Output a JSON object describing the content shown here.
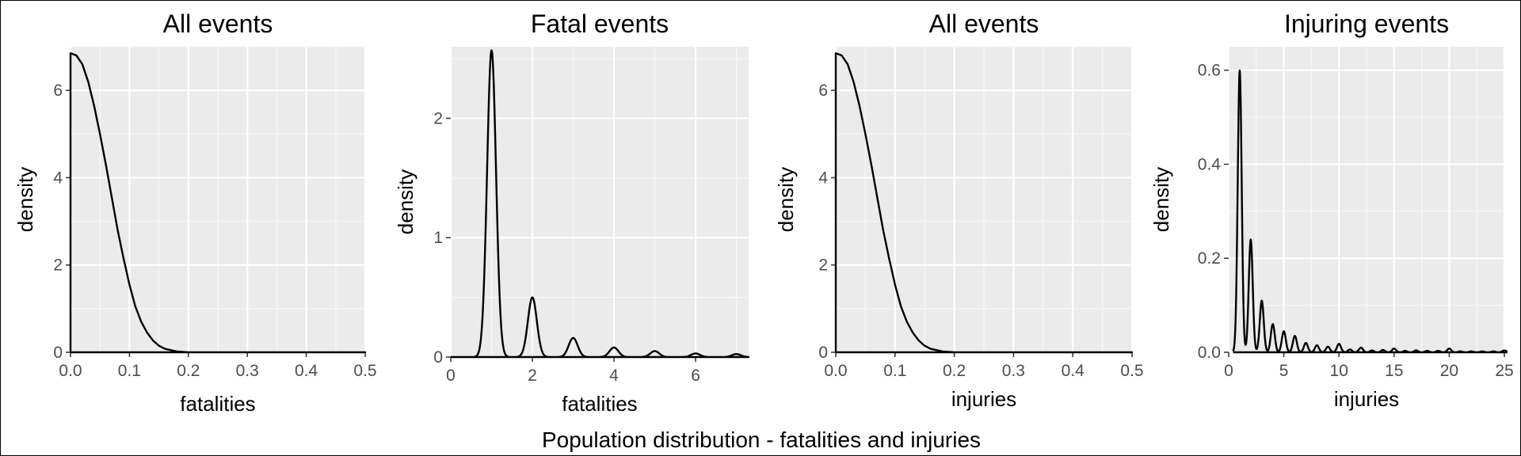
{
  "figure": {
    "caption": "Population distribution - fatalities and injuries"
  },
  "chart_data": [
    {
      "type": "line",
      "title": "All events",
      "xlabel": "fatalities",
      "ylabel": "density",
      "xlim": [
        0,
        0.5
      ],
      "ylim": [
        0,
        7
      ],
      "xticks": [
        0.0,
        0.1,
        0.2,
        0.3,
        0.4,
        0.5
      ],
      "xtick_labels": [
        "0.0",
        "0.1",
        "0.2",
        "0.3",
        "0.4",
        "0.5"
      ],
      "yticks": [
        0,
        2,
        4,
        6
      ],
      "ytick_labels": [
        "0",
        "2",
        "4",
        "6"
      ],
      "grid": true,
      "series": [
        {
          "x": [
            0,
            0,
            0.01,
            0.02,
            0.03,
            0.04,
            0.05,
            0.06,
            0.07,
            0.08,
            0.09,
            0.1,
            0.11,
            0.12,
            0.13,
            0.14,
            0.15,
            0.16,
            0.18,
            0.2,
            0.25,
            0.3,
            0.4,
            0.5
          ],
          "y": [
            0,
            6.85,
            6.8,
            6.6,
            6.2,
            5.65,
            5.0,
            4.3,
            3.55,
            2.8,
            2.15,
            1.55,
            1.05,
            0.7,
            0.45,
            0.27,
            0.15,
            0.08,
            0.02,
            0.0,
            0.0,
            0.0,
            0.0,
            0.0
          ]
        }
      ]
    },
    {
      "type": "line",
      "title": "Fatal events",
      "xlabel": "fatalities",
      "ylabel": "density",
      "xlim": [
        0,
        7.3
      ],
      "ylim": [
        0,
        2.6
      ],
      "xticks": [
        0,
        2,
        4,
        6
      ],
      "xtick_labels": [
        "0",
        "2",
        "4",
        "6"
      ],
      "yticks": [
        0,
        1,
        2
      ],
      "ytick_labels": [
        "0",
        "1",
        "2"
      ],
      "grid": true,
      "series": [
        {
          "peaks": [
            {
              "x": 1,
              "height": 2.57
            },
            {
              "x": 2,
              "height": 0.5
            },
            {
              "x": 3,
              "height": 0.16
            },
            {
              "x": 4,
              "height": 0.08
            },
            {
              "x": 5,
              "height": 0.05
            },
            {
              "x": 6,
              "height": 0.03
            },
            {
              "x": 7,
              "height": 0.025
            }
          ],
          "bandwidth": 0.11,
          "x_range": [
            0,
            7.3
          ]
        }
      ]
    },
    {
      "type": "line",
      "title": "All events",
      "xlabel": "injuries",
      "ylabel": "density",
      "xlim": [
        0,
        0.5
      ],
      "ylim": [
        0,
        7
      ],
      "xticks": [
        0.0,
        0.1,
        0.2,
        0.3,
        0.4,
        0.5
      ],
      "xtick_labels": [
        "0.0",
        "0.1",
        "0.2",
        "0.3",
        "0.4",
        "0.5"
      ],
      "yticks": [
        0,
        2,
        4,
        6
      ],
      "ytick_labels": [
        "0",
        "2",
        "4",
        "6"
      ],
      "grid": true,
      "series": [
        {
          "x": [
            0,
            0,
            0.01,
            0.02,
            0.03,
            0.04,
            0.05,
            0.06,
            0.07,
            0.08,
            0.09,
            0.1,
            0.11,
            0.12,
            0.13,
            0.14,
            0.15,
            0.16,
            0.18,
            0.2,
            0.25,
            0.3,
            0.4,
            0.5
          ],
          "y": [
            0,
            6.85,
            6.8,
            6.6,
            6.2,
            5.65,
            5.0,
            4.3,
            3.55,
            2.8,
            2.15,
            1.55,
            1.05,
            0.7,
            0.45,
            0.27,
            0.15,
            0.08,
            0.02,
            0.0,
            0.0,
            0.0,
            0.0,
            0.0
          ]
        }
      ]
    },
    {
      "type": "line",
      "title": "Injuring events",
      "xlabel": "injuries",
      "ylabel": "density",
      "xlim": [
        0,
        25
      ],
      "ylim": [
        0,
        0.65
      ],
      "xticks": [
        0,
        5,
        10,
        15,
        20,
        25
      ],
      "xtick_labels": [
        "0",
        "5",
        "10",
        "15",
        "20",
        "25"
      ],
      "yticks": [
        0.0,
        0.2,
        0.4,
        0.6
      ],
      "ytick_labels": [
        "0.0",
        "0.2",
        "0.4",
        "0.6"
      ],
      "grid": true,
      "series": [
        {
          "peaks": [
            {
              "x": 1,
              "height": 0.6
            },
            {
              "x": 2,
              "height": 0.24
            },
            {
              "x": 3,
              "height": 0.11
            },
            {
              "x": 4,
              "height": 0.06
            },
            {
              "x": 5,
              "height": 0.045
            },
            {
              "x": 6,
              "height": 0.035
            },
            {
              "x": 7,
              "height": 0.02
            },
            {
              "x": 8,
              "height": 0.015
            },
            {
              "x": 9,
              "height": 0.012
            },
            {
              "x": 10,
              "height": 0.018
            },
            {
              "x": 11,
              "height": 0.006
            },
            {
              "x": 12,
              "height": 0.01
            },
            {
              "x": 13,
              "height": 0.004
            },
            {
              "x": 14,
              "height": 0.005
            },
            {
              "x": 15,
              "height": 0.008
            },
            {
              "x": 16,
              "height": 0.003
            },
            {
              "x": 17,
              "height": 0.004
            },
            {
              "x": 18,
              "height": 0.003
            },
            {
              "x": 19,
              "height": 0.003
            },
            {
              "x": 20,
              "height": 0.008
            },
            {
              "x": 21,
              "height": 0.002
            },
            {
              "x": 22,
              "height": 0.002
            },
            {
              "x": 23,
              "height": 0.002
            },
            {
              "x": 24,
              "height": 0.002
            },
            {
              "x": 25,
              "height": 0.004
            }
          ],
          "bandwidth": 0.18,
          "x_range": [
            0.4,
            25.2
          ]
        }
      ]
    }
  ]
}
